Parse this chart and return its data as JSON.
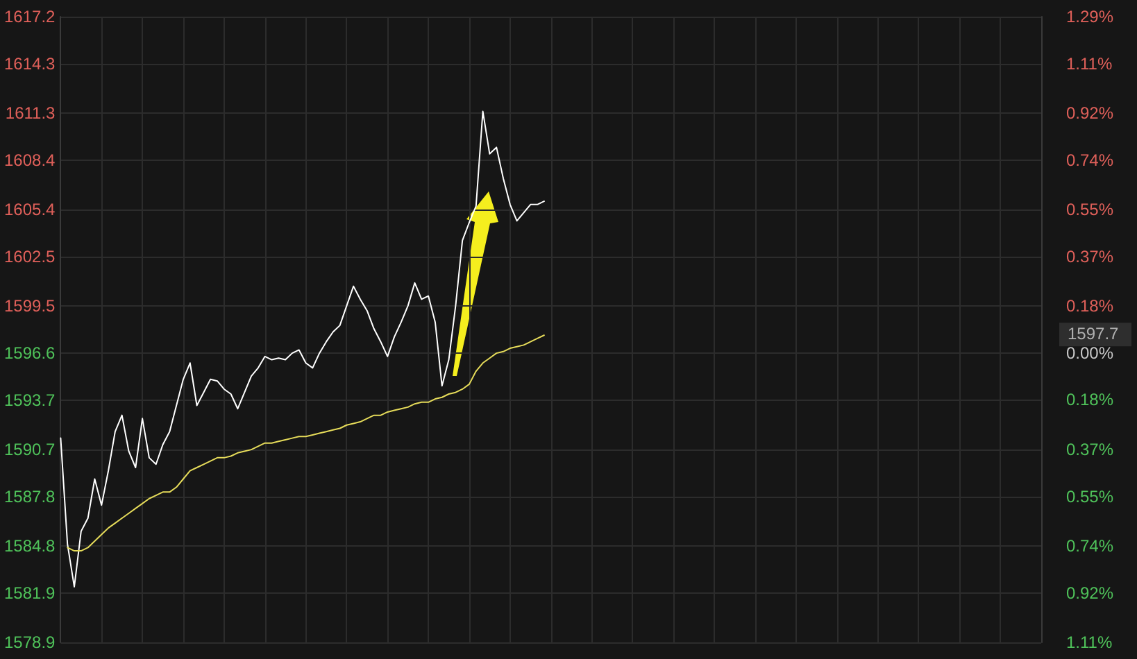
{
  "chart_data": {
    "type": "line",
    "categories": [
      null,
      null,
      null,
      null,
      null,
      null,
      null,
      null,
      null,
      null,
      null,
      null,
      null,
      null,
      null,
      null,
      null,
      null,
      null,
      null,
      null,
      null,
      null,
      null,
      null,
      null,
      null,
      null,
      null,
      null,
      null,
      null,
      null,
      null,
      null,
      null,
      null,
      null,
      null,
      null,
      null,
      null,
      null,
      null,
      null,
      null,
      null,
      null,
      null,
      null,
      null,
      null,
      null,
      null,
      null,
      null,
      null,
      null,
      null,
      null,
      null,
      null,
      null,
      null,
      null,
      null,
      null,
      null,
      null,
      null,
      null,
      null,
      null,
      null,
      null,
      null,
      null,
      null,
      null,
      null,
      null,
      null,
      null,
      null,
      null,
      null,
      null,
      null,
      null,
      null,
      null,
      null,
      null,
      null,
      null,
      null,
      null,
      null,
      null,
      null,
      null,
      null,
      null,
      null,
      null,
      null,
      null,
      null,
      null,
      null,
      null,
      null,
      null,
      null,
      null,
      null,
      null,
      null,
      null,
      null,
      null,
      null,
      null,
      null,
      null,
      null,
      null,
      null,
      null,
      null,
      null,
      null,
      null,
      null,
      null,
      null,
      null,
      null,
      null,
      null,
      null,
      null,
      null,
      null,
      null
    ],
    "series": [
      {
        "color": "#ffffff",
        "values": [
          1591.4,
          1584.9,
          1582.3,
          1585.7,
          1586.5,
          1588.9,
          1587.3,
          1589.4,
          1591.8,
          1592.8,
          1590.6,
          1589.6,
          1592.6,
          1590.2,
          1589.8,
          1591.0,
          1591.8,
          1593.4,
          1595.0,
          1596.0,
          1593.4,
          1594.2,
          1595.0,
          1594.9,
          1594.4,
          1594.1,
          1593.2,
          1594.2,
          1595.2,
          1595.7,
          1596.4,
          1596.2,
          1596.3,
          1596.2,
          1596.6,
          1596.8,
          1596.0,
          1595.7,
          1596.6,
          1597.3,
          1597.9,
          1598.3,
          1599.5,
          1600.7,
          1599.9,
          1599.2,
          1598.1,
          1597.3,
          1596.4,
          1597.6,
          1598.5,
          1599.5,
          1600.9,
          1599.9,
          1600.1,
          1598.5,
          1594.6,
          1596.2,
          1599.5,
          1603.5,
          1604.6,
          1605.6,
          1611.4,
          1608.8,
          1609.2,
          1607.3,
          1605.7,
          1604.7,
          1605.2,
          1605.7,
          1605.7,
          1605.9,
          null,
          null,
          null,
          null,
          null,
          null,
          null,
          null,
          null,
          null,
          null,
          null,
          null,
          null,
          null,
          null,
          null,
          null,
          null,
          null,
          null,
          null,
          null,
          null,
          null,
          null,
          null,
          null,
          null,
          null,
          null,
          null,
          null,
          null,
          null,
          null,
          null,
          null,
          null,
          null,
          null,
          null,
          null,
          null,
          null,
          null,
          null,
          null,
          null,
          null,
          null,
          null,
          null,
          null,
          null,
          null,
          null,
          null,
          null,
          null,
          null,
          null,
          null,
          null,
          null,
          null,
          null,
          null,
          null,
          null,
          null,
          null,
          null
        ]
      },
      {
        "color": "#e6dc5a",
        "values": [
          null,
          1584.7,
          1584.5,
          1584.5,
          1584.7,
          1585.1,
          1585.5,
          1585.9,
          1586.2,
          1586.5,
          1586.8,
          1587.1,
          1587.4,
          1587.7,
          1587.9,
          1588.1,
          1588.1,
          1588.4,
          1588.9,
          1589.4,
          1589.6,
          1589.8,
          1590.0,
          1590.2,
          1590.2,
          1590.3,
          1590.5,
          1590.6,
          1590.7,
          1590.9,
          1591.1,
          1591.1,
          1591.2,
          1591.3,
          1591.4,
          1591.5,
          1591.5,
          1591.6,
          1591.7,
          1591.8,
          1591.9,
          1592.0,
          1592.2,
          1592.3,
          1592.4,
          1592.6,
          1592.8,
          1592.8,
          1593.0,
          1593.1,
          1593.2,
          1593.3,
          1593.5,
          1593.6,
          1593.6,
          1593.8,
          1593.9,
          1594.1,
          1594.2,
          1594.4,
          1594.7,
          1595.5,
          1596.0,
          1596.3,
          1596.6,
          1596.7,
          1596.9,
          1597.0,
          1597.1,
          1597.3,
          1597.5,
          1597.7,
          null,
          null,
          null,
          null,
          null,
          null,
          null,
          null,
          null,
          null,
          null,
          null,
          null,
          null,
          null,
          null,
          null,
          null,
          null,
          null,
          null,
          null,
          null,
          null,
          null,
          null,
          null,
          null,
          null,
          null,
          null,
          null,
          null,
          null,
          null,
          null,
          null,
          null,
          null,
          null,
          null,
          null,
          null,
          null,
          null,
          null,
          null,
          null,
          null,
          null,
          null,
          null,
          null,
          null,
          null,
          null,
          null,
          null,
          null,
          null,
          null,
          null,
          null,
          null,
          null,
          null,
          null,
          null,
          null,
          null,
          null,
          null,
          null
        ]
      }
    ],
    "ylim": [
      1578.9,
      1617.2
    ],
    "yticks": [
      1578.9,
      1581.9,
      1584.8,
      1587.8,
      1590.7,
      1593.7,
      1596.6,
      1599.5,
      1602.5,
      1605.4,
      1608.4,
      1611.3,
      1614.3,
      1617.2
    ],
    "y2lim": [
      -1.11,
      1.29
    ],
    "y2ticks": [
      {
        "value": -1.11,
        "label": "1.11%"
      },
      {
        "value": -0.92,
        "label": "0.92%"
      },
      {
        "value": -0.74,
        "label": "0.74%"
      },
      {
        "value": -0.55,
        "label": "0.55%"
      },
      {
        "value": -0.37,
        "label": "0.37%"
      },
      {
        "value": -0.18,
        "label": "0.18%"
      },
      {
        "value": 0,
        "label": "0.00%"
      },
      {
        "value": 0.18,
        "label": "0.18%"
      },
      {
        "value": 0.37,
        "label": "0.37%"
      },
      {
        "value": 0.55,
        "label": "0.55%"
      },
      {
        "value": 0.74,
        "label": "0.74%"
      },
      {
        "value": 0.92,
        "label": "0.92%"
      },
      {
        "value": 1.11,
        "label": "1.11%"
      },
      {
        "value": 1.29,
        "label": "1.29%"
      }
    ],
    "annotations": [
      "1597.7"
    ],
    "grid": true,
    "marker": "none",
    "line_style": "solid"
  }
}
